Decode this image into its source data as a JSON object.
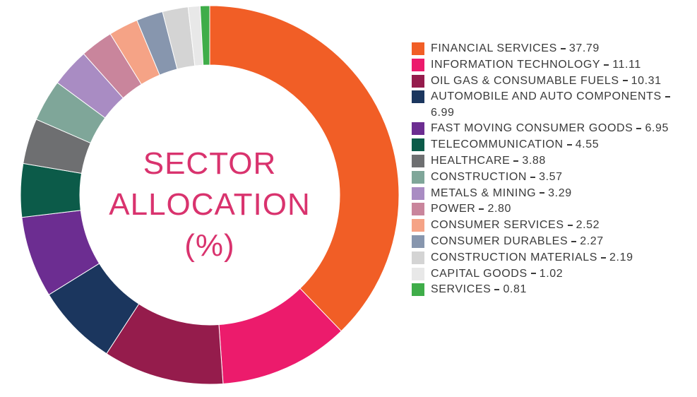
{
  "chart_data": {
    "type": "donut",
    "title": "SECTOR ALLOCATION (%)",
    "categories": [
      "FINANCIAL SERVICES",
      "INFORMATION TECHNOLOGY",
      "OIL GAS & CONSUMABLE FUELS",
      "AUTOMOBILE AND AUTO COMPONENTS",
      "FAST MOVING CONSUMER GOODS",
      "TELECOMMUNICATION",
      "HEALTHCARE",
      "CONSTRUCTION",
      "METALS & MINING",
      "POWER",
      "CONSUMER SERVICES",
      "CONSUMER DURABLES",
      "CONSTRUCTION MATERIALS",
      "CAPITAL GOODS",
      "SERVICES"
    ],
    "values": [
      37.79,
      11.11,
      10.31,
      6.99,
      6.95,
      4.55,
      3.88,
      3.57,
      3.29,
      2.8,
      2.52,
      2.27,
      2.19,
      1.02,
      0.81
    ],
    "value_labels": [
      "37.79",
      "11.11",
      "10.31",
      "6.99",
      "6.95",
      "4.55",
      "3.88",
      "3.57",
      "3.29",
      "2.80",
      "2.52",
      "2.27",
      "2.19",
      "1.02",
      "0.81"
    ],
    "colors": [
      "#f15e26",
      "#ec1b6c",
      "#951c4c",
      "#1b365e",
      "#6c2d91",
      "#0c5b49",
      "#6e6f71",
      "#7fa699",
      "#a98cc3",
      "#c9859c",
      "#f5a386",
      "#8796ae",
      "#d4d4d4",
      "#e8e8e8",
      "#3fad49"
    ]
  }
}
